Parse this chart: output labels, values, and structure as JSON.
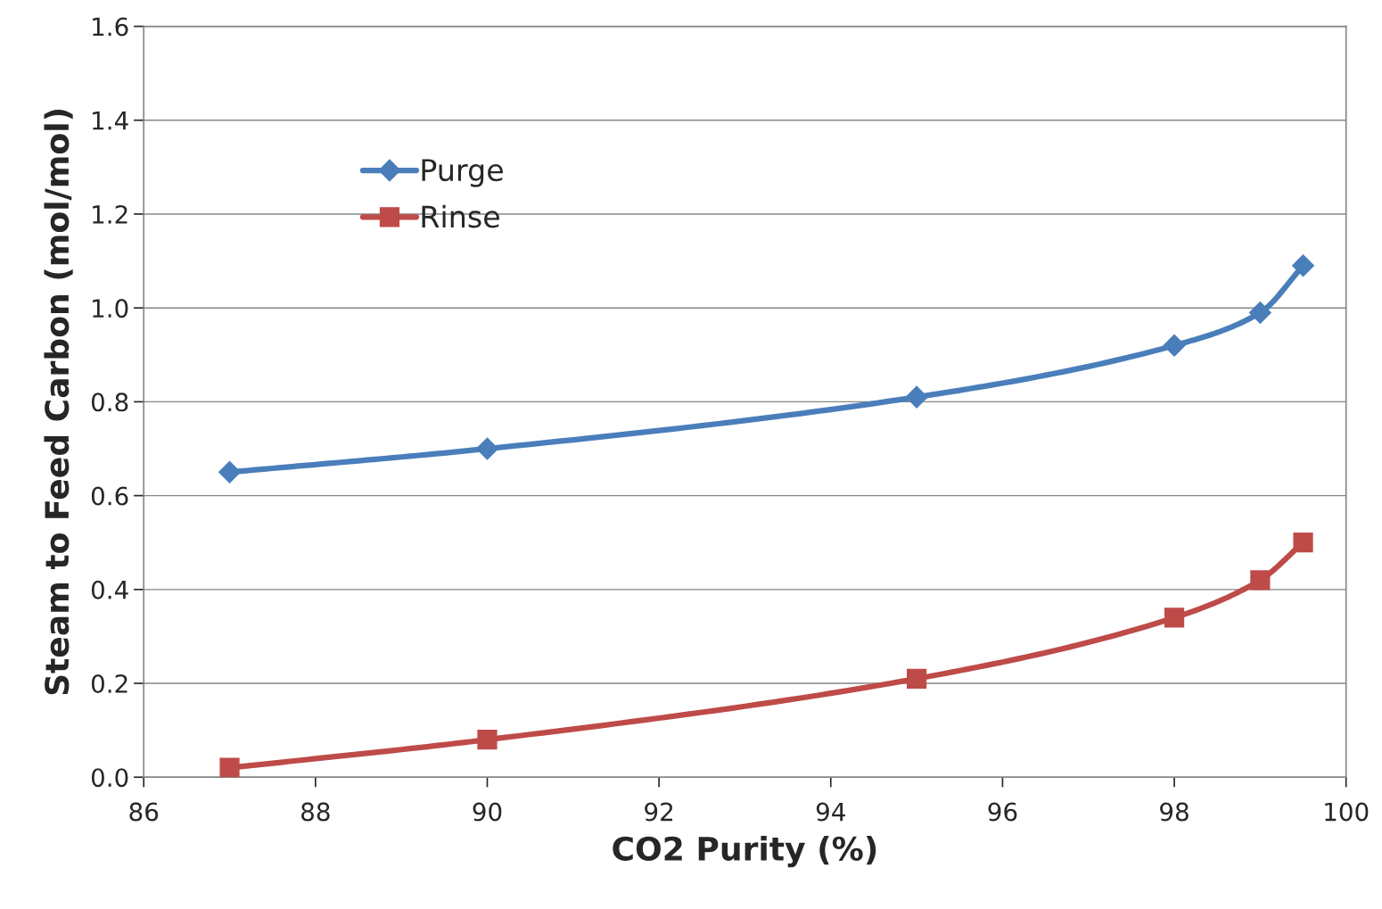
{
  "chart_data": {
    "type": "line",
    "xlabel": "CO2 Purity (%)",
    "ylabel": "Steam to Feed Carbon (mol/mol)",
    "xlim": [
      86,
      100
    ],
    "xticks": [
      86,
      88,
      90,
      92,
      94,
      96,
      98,
      100
    ],
    "ylim": [
      0.0,
      1.6
    ],
    "yticks": [
      {
        "value": 0.0,
        "label": "0.0"
      },
      {
        "value": 0.2,
        "label": "0.2"
      },
      {
        "value": 0.4,
        "label": "0.4"
      },
      {
        "value": 0.6,
        "label": "0.6"
      },
      {
        "value": 0.8,
        "label": "0.8"
      },
      {
        "value": 1.0,
        "label": "1.0"
      },
      {
        "value": 1.2,
        "label": "1.2"
      },
      {
        "value": 1.4,
        "label": "1.4"
      },
      {
        "value": 1.6,
        "label": "1.6"
      }
    ],
    "x": [
      87,
      90,
      95,
      98,
      99,
      99.5
    ],
    "series": [
      {
        "name": "Purge",
        "color": "#4a7ebb",
        "marker": "diamond",
        "values": [
          0.65,
          0.7,
          0.81,
          0.92,
          0.99,
          1.09
        ]
      },
      {
        "name": "Rinse",
        "color": "#be4b48",
        "marker": "square",
        "values": [
          0.02,
          0.08,
          0.21,
          0.34,
          0.42,
          0.5
        ]
      }
    ],
    "grid": "y",
    "legend": "top left",
    "line_style": "solid"
  }
}
